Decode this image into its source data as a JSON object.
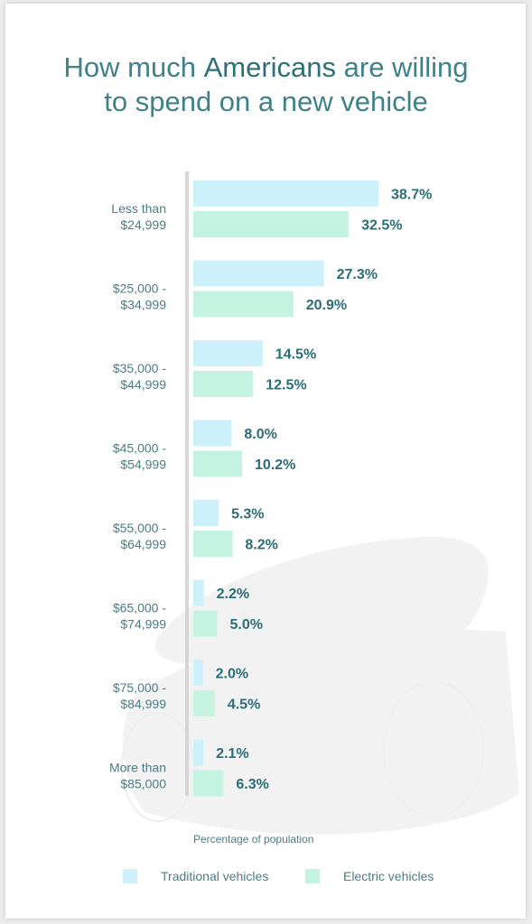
{
  "title": {
    "part1": "How much ",
    "bold": "Americans",
    "part2": " are willing",
    "line2": "to spend on a new vehicle"
  },
  "colors": {
    "traditional": "#cdf1fb",
    "electric": "#c4f3e2",
    "value_label": "#2b6c75",
    "category_label": "#4d7c83",
    "axis": "#d6d6d6"
  },
  "chart_data": {
    "type": "bar",
    "orientation": "horizontal",
    "xlabel": "Percentage of population",
    "categories": [
      [
        "Less than",
        "$24,999"
      ],
      [
        "$25,000 -",
        "$34,999"
      ],
      [
        "$35,000 -",
        "$44,999"
      ],
      [
        "$45,000 -",
        "$54,999"
      ],
      [
        "$55,000 -",
        "$64,999"
      ],
      [
        "$65,000 -",
        "$74,999"
      ],
      [
        "$75,000 -",
        "$84,999"
      ],
      [
        "More than",
        "$85,000"
      ]
    ],
    "series": [
      {
        "name": "Traditional vehicles",
        "values": [
          38.7,
          27.3,
          14.5,
          8.0,
          5.3,
          2.2,
          2.0,
          2.1
        ]
      },
      {
        "name": "Electric vehicles",
        "values": [
          32.5,
          20.9,
          12.5,
          10.2,
          8.2,
          5.0,
          4.5,
          6.3
        ]
      }
    ],
    "value_suffix": "%",
    "legend": "bottom"
  }
}
